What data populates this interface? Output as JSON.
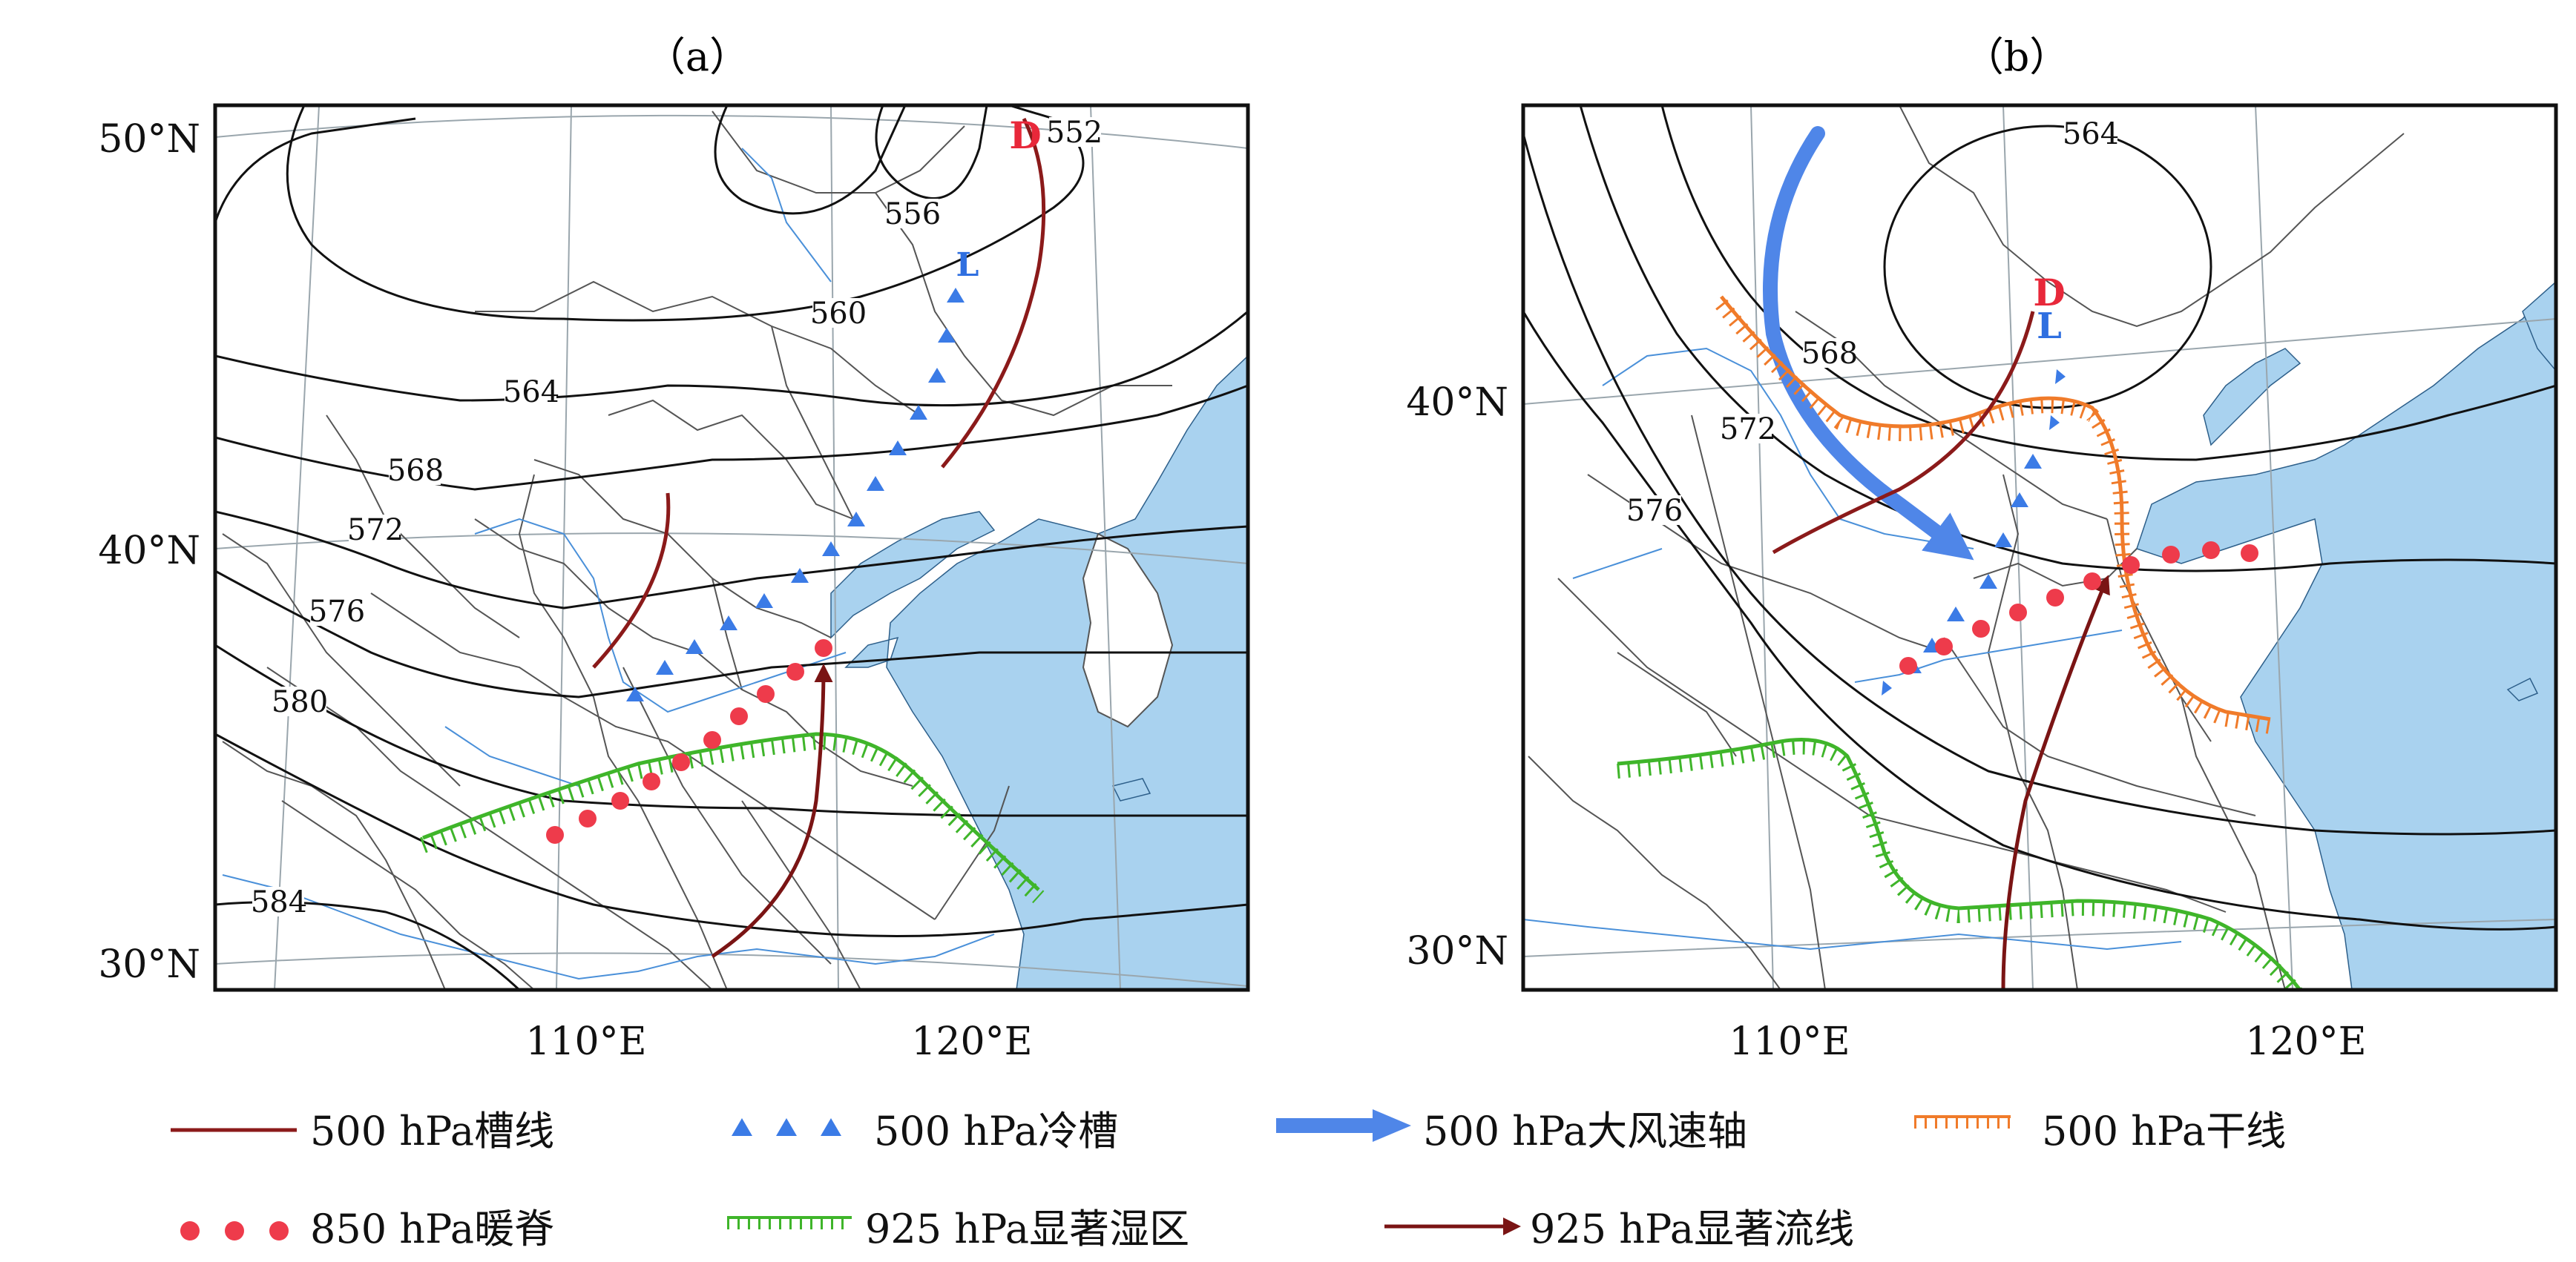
{
  "panels": [
    {
      "id": "a",
      "title": "（a）",
      "lat_labels": [
        "50°N",
        "40°N",
        "30°N"
      ],
      "lon_labels": [
        "110°E",
        "120°E"
      ],
      "contour_labels": [
        "552",
        "556",
        "560",
        "564",
        "568",
        "572",
        "576",
        "580",
        "584"
      ],
      "low_centers": [
        {
          "symbol": "D",
          "kind": "500hPa low center",
          "color": "#e8283a"
        },
        {
          "symbol": "L",
          "kind": "cold trough low",
          "color": "#2f6fe0"
        }
      ]
    },
    {
      "id": "b",
      "title": "（b）",
      "lat_labels": [
        "40°N",
        "30°N"
      ],
      "lon_labels": [
        "110°E",
        "120°E"
      ],
      "contour_labels": [
        "564",
        "568",
        "572",
        "576"
      ],
      "low_centers": [
        {
          "symbol": "D",
          "kind": "500hPa low center",
          "color": "#e8283a"
        },
        {
          "symbol": "L",
          "kind": "cold trough low",
          "color": "#2f6fe0"
        }
      ]
    }
  ],
  "legend": [
    {
      "key": "trough",
      "label": "500 hPa槽线",
      "color": "#8b1a1a"
    },
    {
      "key": "cold_trough",
      "label": "500 hPa冷槽",
      "color": "#3b7be6"
    },
    {
      "key": "jet_axis",
      "label": "500 hPa大风速轴",
      "color": "#4f86e8"
    },
    {
      "key": "dry_line",
      "label": "500 hPa干线",
      "color": "#f07b2a"
    },
    {
      "key": "warm_ridge",
      "label": "850 hPa暖脊",
      "color": "#ee3b4b"
    },
    {
      "key": "moist_area",
      "label": "925 hPa显著湿区",
      "color": "#3fb52a"
    },
    {
      "key": "streamline",
      "label": "925 hPa显著流线",
      "color": "#7a1414"
    }
  ],
  "colors": {
    "sea": "#a9d2ef",
    "river": "#4a90d9",
    "border": "#555555",
    "contour": "#111111",
    "graticule": "#9aa6ad"
  }
}
